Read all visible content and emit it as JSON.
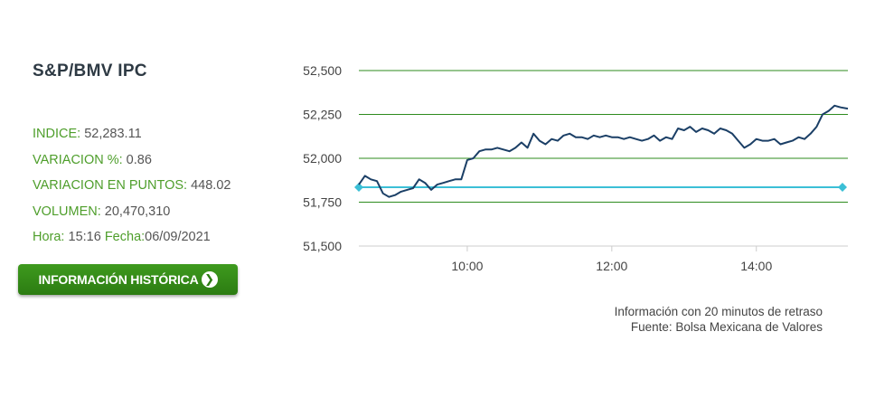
{
  "index_name": "S&P/BMV IPC",
  "stats": {
    "indice_label": "INDICE:",
    "indice_value": "52,283.11",
    "variacion_pct_label": "VARIACION %:",
    "variacion_pct_value": "0.86",
    "variacion_pts_label": "VARIACION EN PUNTOS:",
    "variacion_pts_value": "448.02",
    "volumen_label": "VOLUMEN:",
    "volumen_value": "20,470,310",
    "hora_label": "Hora:",
    "hora_value": "15:16",
    "fecha_label": "Fecha:",
    "fecha_value": "06/09/2021"
  },
  "button_label": "INFORMACIÓN HISTÓRICA",
  "note": {
    "line1": "Información con 20 minutos de retraso",
    "line2": "Fuente: Bolsa Mexicana de Valores"
  },
  "colors": {
    "grid": "#2e8b1e",
    "series": "#1b3f66",
    "reference": "#3bbfd6",
    "label": "#4e9e2b"
  },
  "chart_data": {
    "type": "line",
    "xlim": [
      "08:30",
      "15:16"
    ],
    "ylim": [
      51500,
      52500
    ],
    "yticks": [
      "51,500",
      "51,750",
      "52,000",
      "52,250",
      "52,500"
    ],
    "ytick_values": [
      51500,
      51750,
      52000,
      52250,
      52500
    ],
    "xticks": [
      "10:00",
      "12:00",
      "14:00"
    ],
    "reference_line": 51835,
    "series": [
      {
        "x": [
          "08:30",
          "08:35",
          "08:40",
          "08:45",
          "08:50",
          "08:55",
          "09:00",
          "09:05",
          "09:10",
          "09:15",
          "09:20",
          "09:25",
          "09:30",
          "09:35",
          "09:40",
          "09:45",
          "09:50",
          "09:55",
          "10:00",
          "10:05",
          "10:10",
          "10:15",
          "10:20",
          "10:25",
          "10:30",
          "10:35",
          "10:40",
          "10:45",
          "10:50",
          "10:55",
          "11:00",
          "11:05",
          "11:10",
          "11:15",
          "11:20",
          "11:25",
          "11:30",
          "11:35",
          "11:40",
          "11:45",
          "11:50",
          "11:55",
          "12:00",
          "12:05",
          "12:10",
          "12:15",
          "12:20",
          "12:25",
          "12:30",
          "12:35",
          "12:40",
          "12:45",
          "12:50",
          "12:55",
          "13:00",
          "13:05",
          "13:10",
          "13:15",
          "13:20",
          "13:25",
          "13:30",
          "13:35",
          "13:40",
          "13:45",
          "13:50",
          "13:55",
          "14:00",
          "14:05",
          "14:10",
          "14:15",
          "14:20",
          "14:25",
          "14:30",
          "14:35",
          "14:40",
          "14:45",
          "14:50",
          "14:55",
          "15:00",
          "15:05",
          "15:10",
          "15:16"
        ],
        "y": [
          51850,
          51900,
          51880,
          51870,
          51800,
          51780,
          51790,
          51810,
          51820,
          51830,
          51880,
          51860,
          51820,
          51850,
          51860,
          51870,
          51880,
          51880,
          51990,
          52000,
          52040,
          52050,
          52050,
          52060,
          52050,
          52040,
          52060,
          52090,
          52060,
          52140,
          52100,
          52080,
          52110,
          52100,
          52130,
          52140,
          52120,
          52120,
          52110,
          52130,
          52120,
          52130,
          52120,
          52120,
          52110,
          52120,
          52110,
          52100,
          52110,
          52130,
          52100,
          52120,
          52110,
          52170,
          52160,
          52180,
          52150,
          52170,
          52160,
          52140,
          52170,
          52160,
          52140,
          52100,
          52060,
          52080,
          52110,
          52100,
          52100,
          52110,
          52080,
          52090,
          52100,
          52120,
          52110,
          52140,
          52180,
          52250,
          52270,
          52300,
          52290,
          52283
        ]
      }
    ]
  }
}
